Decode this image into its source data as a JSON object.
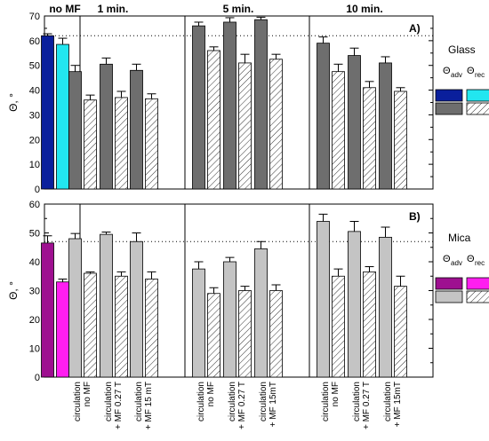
{
  "chart_data": [
    {
      "type": "bar",
      "panel_label": "A)",
      "ylabel": "Θ, °",
      "ylim": [
        0,
        70
      ],
      "yticks": [
        0,
        10,
        20,
        30,
        40,
        50,
        60,
        70
      ],
      "reference_line": 62,
      "legend": {
        "title": "Glass",
        "adv": "Θ",
        "adv_sub": "adv",
        "rec": "Θ",
        "rec_sub": "rec"
      },
      "colors": {
        "nomf_adv": "#0a1f9c",
        "nomf_rec": "#22e6f0",
        "adv": "#6e6e6e",
        "rec": "hatched-white"
      },
      "groups": [
        {
          "label": "no MF",
          "adv": 62,
          "adv_err": 0.8,
          "rec": 58.5,
          "rec_err": 2.5
        },
        {
          "label": "1 min.",
          "adv": 47.5,
          "adv_err": 2.5,
          "rec": 36,
          "rec_err": 2
        },
        {
          "label": "1 min.",
          "adv": 50.5,
          "adv_err": 2.5,
          "rec": 37,
          "rec_err": 2.5
        },
        {
          "label": "1 min.",
          "adv": 48,
          "adv_err": 2.5,
          "rec": 36.5,
          "rec_err": 2
        },
        {
          "label": "5 min.",
          "adv": 66,
          "adv_err": 1.5,
          "rec": 56,
          "rec_err": 1.5
        },
        {
          "label": "5 min.",
          "adv": 67.5,
          "adv_err": 1.8,
          "rec": 51,
          "rec_err": 3.5
        },
        {
          "label": "5 min.",
          "adv": 68.5,
          "adv_err": 1,
          "rec": 52.5,
          "rec_err": 2
        },
        {
          "label": "10 min.",
          "adv": 59,
          "adv_err": 2.5,
          "rec": 47.5,
          "rec_err": 3
        },
        {
          "label": "10 min.",
          "adv": 54,
          "adv_err": 3,
          "rec": 41,
          "rec_err": 2.5
        },
        {
          "label": "10 min.",
          "adv": 51,
          "adv_err": 2.5,
          "rec": 39.5,
          "rec_err": 1.5
        }
      ]
    },
    {
      "type": "bar",
      "panel_label": "B)",
      "ylabel": "Θ, °",
      "ylim": [
        0,
        60
      ],
      "yticks": [
        0,
        10,
        20,
        30,
        40,
        50,
        60
      ],
      "reference_line": 47,
      "legend": {
        "title": "Mica",
        "adv": "Θ",
        "adv_sub": "adv",
        "rec": "Θ",
        "rec_sub": "rec"
      },
      "colors": {
        "nomf_adv": "#9e1090",
        "nomf_rec": "#ff1ef0",
        "adv": "#c4c4c4",
        "rec": "hatched-white"
      },
      "groups": [
        {
          "label": "no MF",
          "adv": 46.5,
          "adv_err": 2.5,
          "rec": 33,
          "rec_err": 1
        },
        {
          "label": "circulation no MF",
          "adv": 48,
          "adv_err": 1.8,
          "rec": 36,
          "rec_err": 0.5
        },
        {
          "label": "circulation + MF 0.27 T",
          "adv": 49.5,
          "adv_err": 0.8,
          "rec": 35,
          "rec_err": 1.5
        },
        {
          "label": "circulation + MF 15 mT",
          "adv": 47,
          "adv_err": 3,
          "rec": 34,
          "rec_err": 2.5
        },
        {
          "label": "circulation no MF",
          "adv": 37.5,
          "adv_err": 2.5,
          "rec": 29,
          "rec_err": 2
        },
        {
          "label": "circulation + MF 0.27 T",
          "adv": 40,
          "adv_err": 1.5,
          "rec": 30,
          "rec_err": 1.5
        },
        {
          "label": "circulation + MF 15mT",
          "adv": 44.5,
          "adv_err": 2.5,
          "rec": 30,
          "rec_err": 2
        },
        {
          "label": "circulation no MF",
          "adv": 54,
          "adv_err": 2.5,
          "rec": 35,
          "rec_err": 2.5
        },
        {
          "label": "circulation + MF 0.27 T",
          "adv": 50.5,
          "adv_err": 3.5,
          "rec": 36.5,
          "rec_err": 1.8
        },
        {
          "label": "circulation + MF 15mT",
          "adv": 48.5,
          "adv_err": 3.5,
          "rec": 31.5,
          "rec_err": 3.5
        }
      ]
    }
  ],
  "top_labels": [
    "no MF",
    "1 min.",
    "5 min.",
    "10 min."
  ],
  "bottom_labels": [
    [
      "circulation",
      "no MF"
    ],
    [
      "circulation",
      "+ MF 0.27 T"
    ],
    [
      "circulation",
      "+ MF 15 mT"
    ],
    [
      "circulation",
      "no MF"
    ],
    [
      "circulation",
      "+ MF 0.27 T"
    ],
    [
      "circulation",
      "+ MF 15mT"
    ],
    [
      "circulation",
      "no MF"
    ],
    [
      "circulation",
      "+ MF 0.27 T"
    ],
    [
      "circulation",
      "+ MF 15mT"
    ]
  ]
}
